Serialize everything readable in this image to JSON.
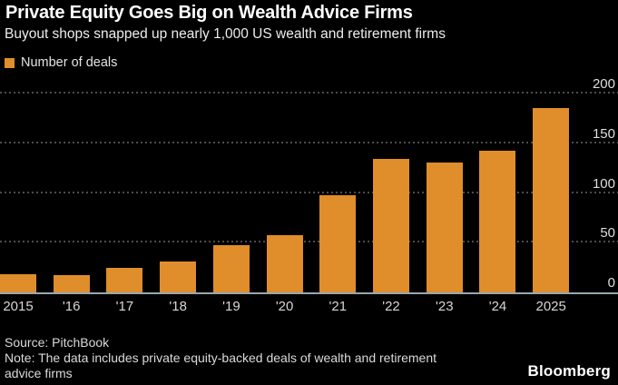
{
  "header": {
    "title": "Private Equity Goes Big on Wealth Advice Firms",
    "subtitle": "Buyout shops snapped up nearly 1,000 US wealth and retirement firms"
  },
  "legend": {
    "label": "Number of deals",
    "swatch_color": "#DF8E2B"
  },
  "chart_data": {
    "type": "bar",
    "title": "Private Equity Goes Big on Wealth Advice Firms",
    "subtitle": "Buyout shops snapped up nearly 1,000 US wealth and retirement firms",
    "series_name": "Number of deals",
    "categories": [
      "2015",
      "'16",
      "'17",
      "'18",
      "'19",
      "'20",
      "'21",
      "'22",
      "'23",
      "'24",
      "2025"
    ],
    "values": [
      18,
      17,
      25,
      31,
      48,
      58,
      98,
      134,
      131,
      143,
      186
    ],
    "ylabel": "",
    "xlabel": "",
    "ylim": [
      0,
      200
    ],
    "yticks": [
      0,
      50,
      100,
      150,
      200
    ],
    "yaxis_side": "right",
    "grid": "horizontal-dotted",
    "legend_position": "top-left",
    "bar_color": "#DF8E2B",
    "background_color": "#000000",
    "baseline_color": "#9AA7AD",
    "gridline_color": "#4D4D4D"
  },
  "footer": {
    "source": "Source: PitchBook",
    "note": "Note: The data includes private equity-backed deals of wealth and retirement advice firms",
    "brand": "Bloomberg"
  }
}
